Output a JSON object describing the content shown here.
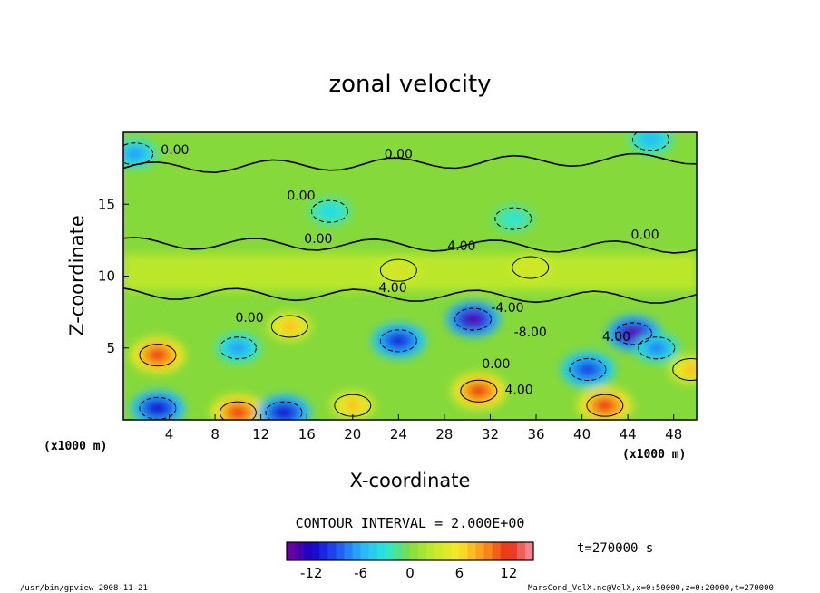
{
  "chart_data": {
    "type": "heatmap",
    "title": "zonal velocity",
    "xlabel": "X-coordinate",
    "ylabel": "Z-coordinate",
    "x_unit_left": "(x1000 m)",
    "x_unit_right": "(x1000 m)",
    "x_ticks": [
      4,
      8,
      12,
      16,
      20,
      24,
      28,
      32,
      36,
      40,
      44,
      48
    ],
    "y_ticks": [
      5,
      10,
      15
    ],
    "xlim": [
      0,
      50
    ],
    "ylim": [
      0,
      20
    ],
    "contour_labels": [
      {
        "text": "0.00",
        "x": 4.5,
        "y": 18.5
      },
      {
        "text": "0.00",
        "x": 24.0,
        "y": 18.2
      },
      {
        "text": "0.00",
        "x": 15.5,
        "y": 15.3
      },
      {
        "text": "0.00",
        "x": 17.0,
        "y": 12.3
      },
      {
        "text": "0.00",
        "x": 45.5,
        "y": 12.6
      },
      {
        "text": "4.00",
        "x": 29.5,
        "y": 11.8
      },
      {
        "text": "4.00",
        "x": 23.5,
        "y": 8.9
      },
      {
        "text": "-4.00",
        "x": 33.5,
        "y": 7.5
      },
      {
        "text": "-8.00",
        "x": 35.5,
        "y": 5.8
      },
      {
        "text": "0.00",
        "x": 11.0,
        "y": 6.8
      },
      {
        "text": "0.00",
        "x": 32.5,
        "y": 3.6
      },
      {
        "text": "4.00",
        "x": 34.5,
        "y": 1.8
      },
      {
        "text": "4.00",
        "x": 43.0,
        "y": 5.5
      }
    ],
    "features": [
      {
        "x": 3.0,
        "y": 4.5,
        "value": 12
      },
      {
        "x": 14.5,
        "y": 6.5,
        "value": 8
      },
      {
        "x": 31.0,
        "y": 2.0,
        "value": 12
      },
      {
        "x": 10.0,
        "y": 0.5,
        "value": 12
      },
      {
        "x": 20.0,
        "y": 1.0,
        "value": 8
      },
      {
        "x": 42.0,
        "y": 1.0,
        "value": 12
      },
      {
        "x": 24.0,
        "y": 10.4,
        "value": 8
      },
      {
        "x": 35.5,
        "y": 10.6,
        "value": 8
      },
      {
        "x": 49.5,
        "y": 3.5,
        "value": 8
      },
      {
        "x": 30.5,
        "y": 7.0,
        "value": -14
      },
      {
        "x": 24.0,
        "y": 5.5,
        "value": -11
      },
      {
        "x": 44.5,
        "y": 6.0,
        "value": -14
      },
      {
        "x": 40.5,
        "y": 3.5,
        "value": -10
      },
      {
        "x": 3.0,
        "y": 0.8,
        "value": -12
      },
      {
        "x": 14.0,
        "y": 0.5,
        "value": -12
      },
      {
        "x": 10.0,
        "y": 5.0,
        "value": -7
      },
      {
        "x": 46.5,
        "y": 5.0,
        "value": -8
      },
      {
        "x": 1.0,
        "y": 18.5,
        "value": -7
      },
      {
        "x": 46.0,
        "y": 19.5,
        "value": -6
      },
      {
        "x": 18.0,
        "y": 14.5,
        "value": -4
      },
      {
        "x": 34.0,
        "y": 14.0,
        "value": -3
      }
    ],
    "contour_interval_text": "CONTOUR INTERVAL = 2.000E+00",
    "colorbar_range": [
      -15,
      15
    ],
    "colorbar_ticks": [
      -12,
      -6,
      0,
      6,
      12
    ],
    "time_label": "t=270000 s"
  },
  "footer": {
    "left": "/usr/bin/gpview   2008-11-21",
    "right": "MarsCond_VelX.nc@VelX,x=0:50000,z=0:20000,t=270000"
  }
}
